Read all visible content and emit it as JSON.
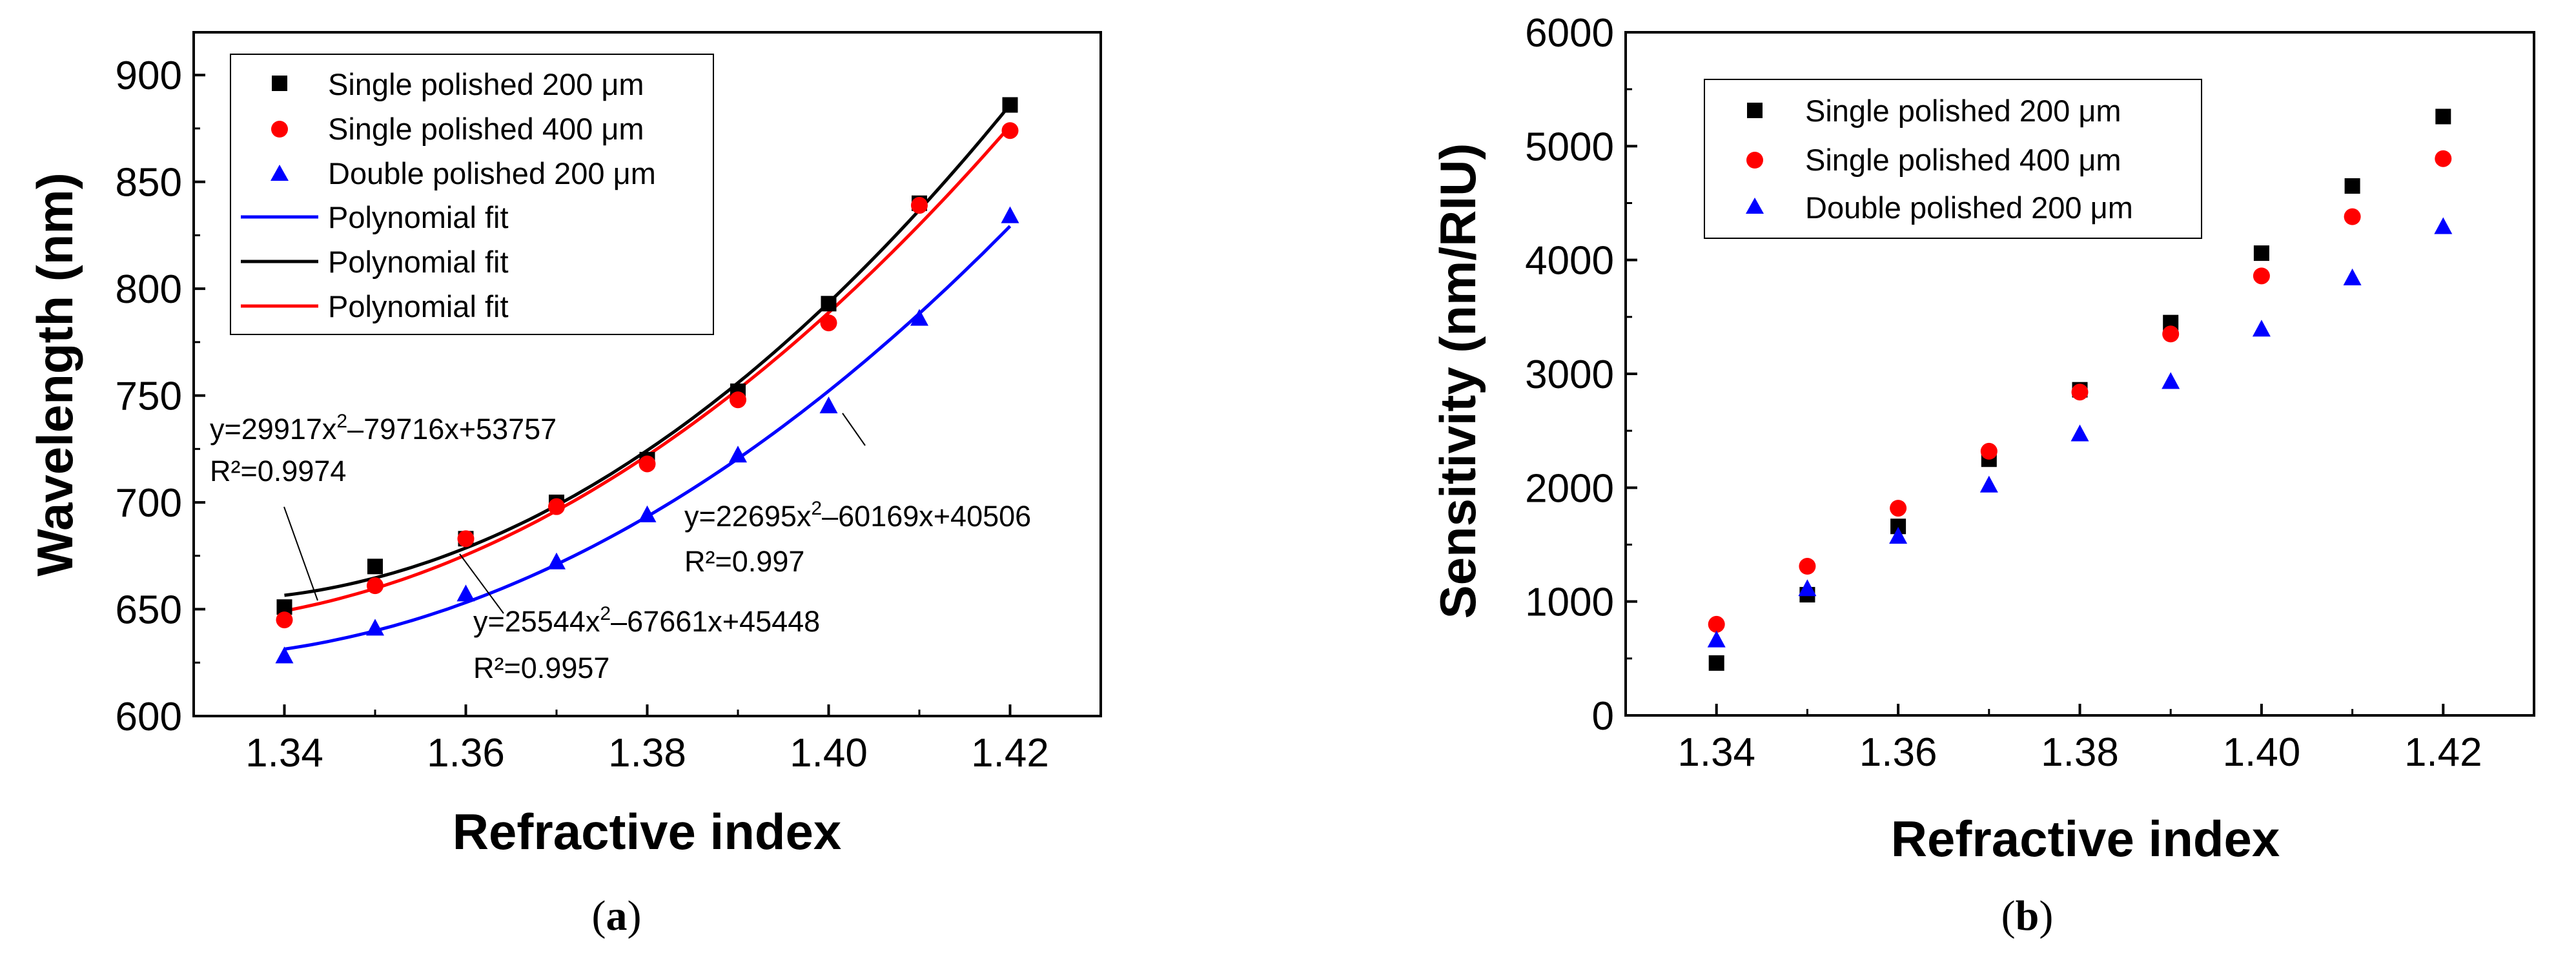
{
  "colors": {
    "series1": "#000000",
    "series2": "#ff0000",
    "series3": "#0000ff",
    "fit_blue": "#0000ff",
    "fit_black": "#000000",
    "fit_red": "#ff0000"
  },
  "chart_data": [
    {
      "panel": "a",
      "caption_open": "(",
      "caption_letter": "a",
      "caption_close": ")",
      "type": "scatter",
      "xlabel": "Refractive index",
      "ylabel": "Wavelength (nm)",
      "xlim": [
        1.33,
        1.43
      ],
      "ylim": [
        600,
        920
      ],
      "xticks": [
        "1.34",
        "1.36",
        "1.38",
        "1.40",
        "1.42"
      ],
      "xtick_values": [
        1.34,
        1.36,
        1.38,
        1.4,
        1.42
      ],
      "yticks": [
        "600",
        "650",
        "700",
        "750",
        "800",
        "850",
        "900"
      ],
      "ytick_values": [
        600,
        650,
        700,
        750,
        800,
        850,
        900
      ],
      "series": [
        {
          "name": "Single polished 200 μm",
          "marker": "square",
          "color": "#000000",
          "x": [
            1.34,
            1.35,
            1.36,
            1.37,
            1.38,
            1.39,
            1.4,
            1.41,
            1.42
          ],
          "y": [
            651,
            670,
            683,
            700,
            720,
            752,
            793,
            840,
            886
          ]
        },
        {
          "name": "Single polished 400 μm",
          "marker": "circle",
          "color": "#ff0000",
          "x": [
            1.34,
            1.35,
            1.36,
            1.37,
            1.38,
            1.39,
            1.4,
            1.41,
            1.42
          ],
          "y": [
            645,
            661,
            683,
            698,
            718,
            748,
            784,
            839,
            874
          ]
        },
        {
          "name": "Double polished 200 μm",
          "marker": "triangle",
          "color": "#0000ff",
          "x": [
            1.34,
            1.35,
            1.36,
            1.37,
            1.38,
            1.39,
            1.4,
            1.41,
            1.42
          ],
          "y": [
            628,
            641,
            657,
            672,
            694,
            722,
            745,
            786,
            834
          ]
        }
      ],
      "fits": [
        {
          "name": "Polynomial fit",
          "color": "#0000ff",
          "x_range": [
            1.34,
            1.42
          ],
          "y_at": [
            630,
            827
          ]
        },
        {
          "name": "Polynomial fit",
          "color": "#000000",
          "x_range": [
            1.34,
            1.42
          ],
          "y_at": [
            656,
            882
          ]
        },
        {
          "name": "Polynomial fit",
          "color": "#ff0000",
          "x_range": [
            1.34,
            1.42
          ],
          "y_at": [
            649,
            876
          ]
        }
      ],
      "annotations": [
        {
          "base": "y=29917x",
          "sup": "2",
          "rest": "–79716x+53757",
          "r2": "R²=0.9974"
        },
        {
          "base": "y=22695x",
          "sup": "2",
          "rest": "–60169x+40506",
          "r2": "R²=0.997"
        },
        {
          "base": "y=25544x",
          "sup": "2",
          "rest": "–67661x+45448",
          "r2": "R²=0.9957"
        }
      ]
    },
    {
      "panel": "b",
      "caption_open": "(",
      "caption_letter": "b",
      "caption_close": ")",
      "type": "scatter",
      "xlabel": "Refractive index",
      "ylabel": "Sensitivity (nm/RIU)",
      "xlim": [
        1.33,
        1.43
      ],
      "ylim": [
        0,
        6000
      ],
      "xticks": [
        "1.34",
        "1.36",
        "1.38",
        "1.40",
        "1.42"
      ],
      "xtick_values": [
        1.34,
        1.36,
        1.38,
        1.4,
        1.42
      ],
      "yticks": [
        "0",
        "1000",
        "2000",
        "3000",
        "4000",
        "5000",
        "6000"
      ],
      "ytick_values": [
        0,
        1000,
        2000,
        3000,
        4000,
        5000,
        6000
      ],
      "series": [
        {
          "name": "Single polished 200 μm",
          "marker": "square",
          "color": "#000000",
          "x": [
            1.34,
            1.35,
            1.36,
            1.37,
            1.38,
            1.39,
            1.4,
            1.41,
            1.42
          ],
          "y": [
            460,
            1060,
            1660,
            2250,
            2860,
            3450,
            4060,
            4650,
            5260
          ]
        },
        {
          "name": "Single polished 400 μm",
          "marker": "circle",
          "color": "#ff0000",
          "x": [
            1.34,
            1.35,
            1.36,
            1.37,
            1.38,
            1.39,
            1.4,
            1.41,
            1.42
          ],
          "y": [
            800,
            1310,
            1820,
            2320,
            2840,
            3350,
            3860,
            4380,
            4890
          ]
        },
        {
          "name": "Double polished 200 μm",
          "marker": "triangle",
          "color": "#0000ff",
          "x": [
            1.34,
            1.35,
            1.36,
            1.37,
            1.38,
            1.39,
            1.4,
            1.41,
            1.42
          ],
          "y": [
            660,
            1110,
            1570,
            2020,
            2470,
            2930,
            3390,
            3840,
            4290
          ]
        }
      ]
    }
  ]
}
